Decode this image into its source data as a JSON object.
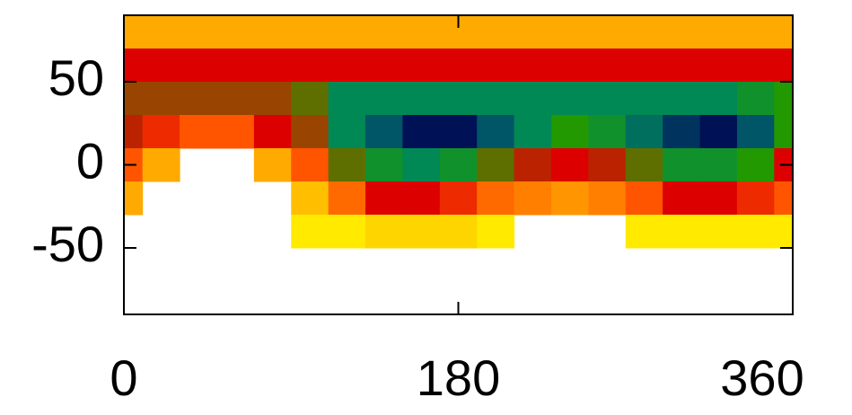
{
  "chart_data": {
    "type": "contour",
    "x": [
      0,
      20,
      40,
      60,
      80,
      100,
      120,
      140,
      160,
      180,
      200,
      220,
      240,
      260,
      280,
      300,
      320,
      340,
      360
    ],
    "y": [
      80,
      60,
      40,
      20,
      0,
      -20,
      -40,
      -60,
      -80
    ],
    "z": [
      [
        2,
        2,
        2,
        2,
        2,
        2,
        2,
        2,
        2,
        2,
        2,
        2,
        2,
        2,
        2,
        2,
        2,
        2,
        2
      ],
      [
        5,
        5,
        5,
        5,
        5,
        5,
        5,
        5,
        5,
        5,
        5,
        5,
        5,
        5,
        5,
        5,
        5,
        5,
        5
      ],
      [
        6,
        6,
        6,
        6,
        6,
        6.5,
        8,
        8,
        8,
        8,
        8,
        8,
        8,
        8,
        8,
        8,
        8,
        7.5,
        7
      ],
      [
        5.5,
        4.5,
        4,
        4,
        5,
        6,
        8,
        9,
        10,
        10,
        9,
        8,
        7,
        7.5,
        8.5,
        9.5,
        10,
        9,
        7
      ],
      [
        4,
        2,
        null,
        null,
        2,
        4,
        6.5,
        7.5,
        8,
        7.5,
        6.5,
        5.5,
        5,
        5.5,
        6.5,
        7.5,
        7.5,
        7,
        5
      ],
      [
        2,
        null,
        null,
        null,
        null,
        1.5,
        3.5,
        5,
        5,
        4.5,
        3.5,
        3,
        2.5,
        3,
        4,
        5,
        5,
        4.5,
        4
      ],
      [
        null,
        null,
        null,
        null,
        null,
        0.5,
        0.5,
        1,
        1,
        1,
        0.5,
        null,
        null,
        null,
        0.5,
        0.5,
        0.5,
        0.5,
        0.5
      ],
      [
        null,
        null,
        null,
        null,
        null,
        null,
        null,
        null,
        null,
        null,
        null,
        null,
        null,
        null,
        null,
        null,
        null,
        null,
        null
      ],
      [
        null,
        null,
        null,
        null,
        null,
        null,
        null,
        null,
        null,
        null,
        null,
        null,
        null,
        null,
        null,
        null,
        null,
        null,
        null
      ]
    ],
    "colorscale": [
      {
        "value": 0,
        "color": "#ffff00"
      },
      {
        "value": 2,
        "color": "#ffaa00"
      },
      {
        "value": 4,
        "color": "#ff5500"
      },
      {
        "value": 5,
        "color": "#dd0000"
      },
      {
        "value": 6,
        "color": "#994400"
      },
      {
        "value": 7,
        "color": "#229900"
      },
      {
        "value": 8,
        "color": "#008855"
      },
      {
        "value": 9,
        "color": "#005566"
      },
      {
        "value": 10,
        "color": "#001155"
      }
    ],
    "xlim": [
      0,
      360
    ],
    "xticks": [
      0,
      180,
      360
    ],
    "ylim": [
      -90,
      90
    ],
    "yticks": [
      -50,
      0,
      50
    ]
  }
}
